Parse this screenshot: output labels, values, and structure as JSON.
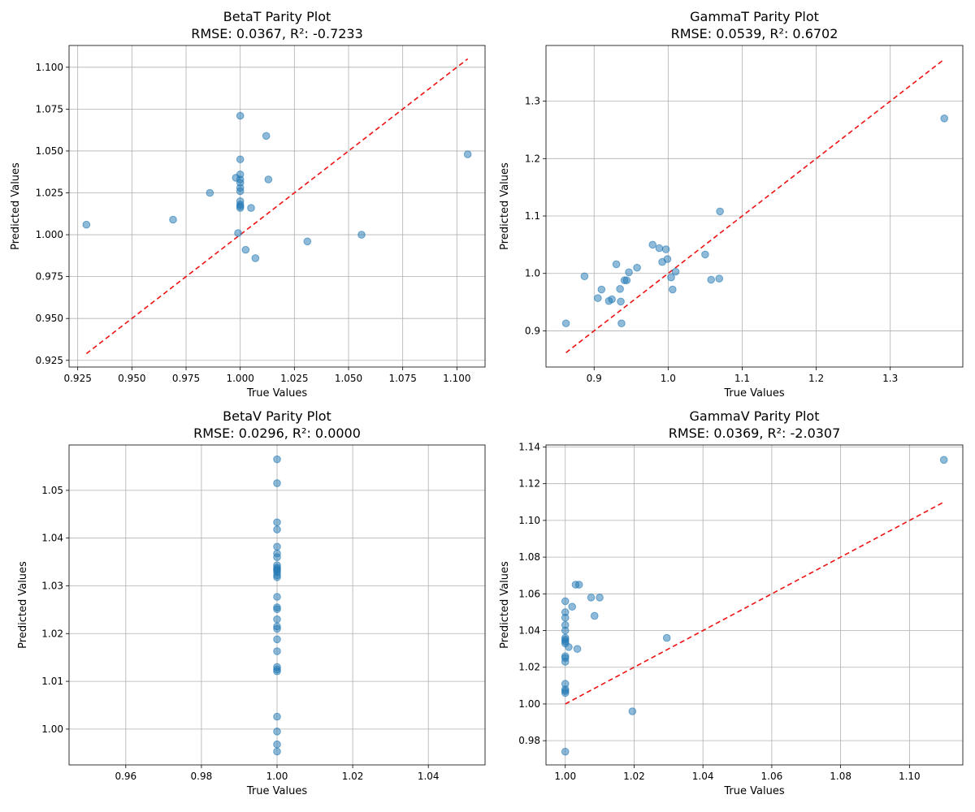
{
  "chart_data": [
    {
      "type": "scatter",
      "title": "BetaT Parity Plot",
      "subtitle": "RMSE: 0.0367, R²: -0.7233",
      "xlabel": "True Values",
      "ylabel": "Predicted Values",
      "xlim": [
        0.921,
        1.113
      ],
      "ylim": [
        0.921,
        1.113
      ],
      "xticks": [
        "0.925",
        "0.950",
        "0.975",
        "1.000",
        "1.025",
        "1.050",
        "1.075",
        "1.100"
      ],
      "yticks": [
        "0.925",
        "0.950",
        "0.975",
        "1.000",
        "1.025",
        "1.050",
        "1.075",
        "1.100"
      ],
      "grid": true,
      "parity_line": [
        0.929,
        1.105
      ],
      "x": [
        0.929,
        0.969,
        0.986,
        0.998,
        0.999,
        1.0,
        1.0,
        1.0,
        1.0,
        1.0,
        1.0,
        1.0,
        1.0,
        1.0,
        1.0,
        1.0,
        1.0025,
        1.005,
        1.007,
        1.012,
        1.013,
        1.031,
        1.056,
        1.105
      ],
      "y": [
        1.006,
        1.009,
        1.025,
        1.034,
        1.001,
        1.071,
        1.045,
        1.036,
        1.033,
        1.031,
        1.028,
        1.026,
        1.02,
        1.018,
        1.017,
        1.016,
        0.991,
        1.016,
        0.986,
        1.059,
        1.033,
        0.996,
        1.0,
        1.048
      ]
    },
    {
      "type": "scatter",
      "title": "GammaT Parity Plot",
      "subtitle": "RMSE: 0.0539, R²: 0.6702",
      "xlabel": "True Values",
      "ylabel": "Predicted Values",
      "xlim": [
        0.835,
        1.398
      ],
      "ylim": [
        0.837,
        1.397
      ],
      "xticks": [
        "0.9",
        "1.0",
        "1.1",
        "1.2",
        "1.3"
      ],
      "yticks": [
        "0.9",
        "1.0",
        "1.1",
        "1.2",
        "1.3"
      ],
      "grid": true,
      "parity_line": [
        0.862,
        1.373
      ],
      "x": [
        0.862,
        0.887,
        0.905,
        0.91,
        0.92,
        0.924,
        0.93,
        0.935,
        0.936,
        0.937,
        0.941,
        0.944,
        0.947,
        0.958,
        0.979,
        0.988,
        0.992,
        0.997,
        0.999,
        1.004,
        1.006,
        1.01,
        1.05,
        1.058,
        1.069,
        1.07,
        1.373
      ],
      "y": [
        0.913,
        0.995,
        0.957,
        0.972,
        0.952,
        0.955,
        1.016,
        0.973,
        0.951,
        0.913,
        0.988,
        0.988,
        1.002,
        1.01,
        1.05,
        1.044,
        1.02,
        1.042,
        1.025,
        0.993,
        0.972,
        1.003,
        1.033,
        0.989,
        0.991,
        1.108,
        1.27
      ]
    },
    {
      "type": "scatter",
      "title": "BetaV Parity Plot",
      "subtitle": "RMSE: 0.0296, R²: 0.0000",
      "xlabel": "True Values",
      "ylabel": "Predicted Values",
      "xlim": [
        0.945,
        1.055
      ],
      "ylim": [
        0.9925,
        1.0595
      ],
      "xticks": [
        "0.96",
        "0.98",
        "1.00",
        "1.02",
        "1.04"
      ],
      "yticks": [
        "1.00",
        "1.01",
        "1.02",
        "1.03",
        "1.04",
        "1.05"
      ],
      "grid": true,
      "parity_line": [
        1.0,
        1.0
      ],
      "x": [
        1.0,
        1.0,
        1.0,
        1.0,
        1.0,
        1.0,
        1.0,
        1.0,
        1.0,
        1.0,
        1.0,
        1.0,
        1.0,
        1.0,
        1.0,
        1.0,
        1.0,
        1.0,
        1.0,
        1.0,
        1.0,
        1.0,
        1.0,
        1.0,
        1.0,
        1.0,
        1.0,
        1.0,
        1.0
      ],
      "y": [
        1.0565,
        1.0515,
        1.0433,
        1.0418,
        1.0382,
        1.0368,
        1.036,
        1.0343,
        1.0335,
        1.0328,
        1.0322,
        1.0318,
        1.0277,
        1.0255,
        1.0251,
        1.023,
        1.0215,
        1.021,
        1.0188,
        1.0163,
        1.013,
        1.0125,
        1.0121,
        1.0026,
        0.9995,
        0.9968,
        0.9953,
        1.0332,
        1.0338
      ]
    },
    {
      "type": "scatter",
      "title": "GammaV Parity Plot",
      "subtitle": "RMSE: 0.0369, R²: -2.0307",
      "xlabel": "True Values",
      "ylabel": "Predicted Values",
      "xlim": [
        0.9944,
        1.1155
      ],
      "ylim": [
        0.9668,
        1.1411
      ],
      "xticks": [
        "1.00",
        "1.02",
        "1.04",
        "1.06",
        "1.08",
        "1.10"
      ],
      "yticks": [
        "0.98",
        "1.00",
        "1.02",
        "1.04",
        "1.06",
        "1.08",
        "1.10",
        "1.12",
        "1.14"
      ],
      "grid": true,
      "parity_line": [
        1.0,
        1.11
      ],
      "x": [
        1.0,
        1.0,
        1.0,
        1.0,
        1.0,
        1.0,
        1.0,
        1.0,
        1.0,
        1.0,
        1.0,
        1.0,
        1.0,
        1.0,
        1.0,
        1.0,
        1.0,
        1.001,
        1.002,
        1.003,
        1.004,
        1.0035,
        1.0075,
        1.0085,
        1.01,
        1.0195,
        1.0295,
        1.11
      ],
      "y": [
        0.974,
        1.006,
        1.008,
        1.011,
        1.023,
        1.025,
        1.026,
        1.033,
        1.035,
        1.036,
        1.04,
        1.043,
        1.047,
        1.05,
        1.056,
        1.007,
        1.034,
        1.031,
        1.053,
        1.065,
        1.065,
        1.03,
        1.058,
        1.048,
        1.058,
        0.996,
        1.036,
        1.133
      ]
    }
  ]
}
